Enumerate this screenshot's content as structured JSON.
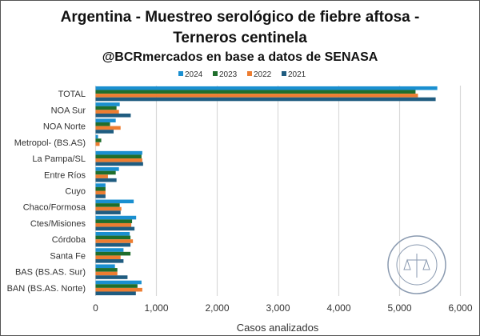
{
  "title_line1": "Argentina - Muestreo serológico de fiebre aftosa -",
  "title_line2": "Terneros centinela",
  "subtitle": "@BCRmercados  en base a datos de SENASA",
  "logo_text": "BOLSA DE COMERCIO DE ROSARIO",
  "chart_data": {
    "type": "bar",
    "orientation": "horizontal",
    "title": "Argentina - Muestreo serológico de fiebre aftosa - Terneros centinela",
    "subtitle": "@BCRmercados  en base a datos de SENASA",
    "xlabel": "Casos analizados",
    "ylabel": "",
    "xlim": [
      0,
      6000
    ],
    "xticks": [
      0,
      1000,
      2000,
      3000,
      4000,
      5000,
      6000
    ],
    "xtick_labels": [
      "0",
      "1,000",
      "2,000",
      "3,000",
      "4,000",
      "5,000",
      "6,000"
    ],
    "grid": "vertical",
    "legend_position": "top",
    "categories": [
      "TOTAL",
      "NOA Sur",
      "NOA Norte",
      "Metropol- (BS.AS)",
      "La Pampa/SL",
      "Entre Ríos",
      "Cuyo",
      "Chaco/Formosa",
      "Ctes/Misiones",
      "Córdoba",
      "Santa Fe",
      "BAS (BS.AS. Sur)",
      "BAN (BS.AS. Norte)"
    ],
    "series": [
      {
        "name": "2024",
        "color": "#1a8fd0",
        "values": [
          5620,
          397,
          331,
          40,
          768,
          384,
          163,
          627,
          667,
          561,
          459,
          318,
          755
        ]
      },
      {
        "name": "2023",
        "color": "#1f6e2c",
        "values": [
          5262,
          344,
          238,
          93,
          755,
          331,
          163,
          397,
          600,
          574,
          574,
          358,
          689
        ]
      },
      {
        "name": "2022",
        "color": "#ed7d31",
        "values": [
          5302,
          384,
          411,
          66,
          768,
          203,
          163,
          424,
          587,
          614,
          411,
          358,
          768
        ]
      },
      {
        "name": "2021",
        "color": "#1f5c80",
        "values": [
          5593,
          578,
          296,
          0,
          781,
          344,
          163,
          411,
          640,
          574,
          459,
          525,
          662
        ]
      }
    ]
  }
}
